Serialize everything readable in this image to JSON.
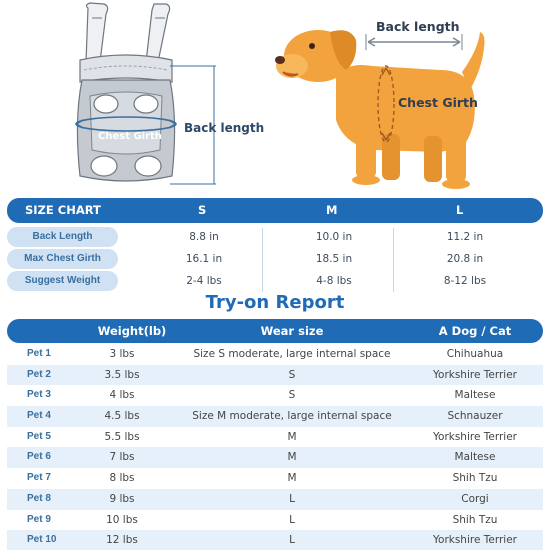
{
  "illustration": {
    "backpack_chest_girth": "Chest Girth",
    "backpack_back_length": "Back length",
    "dog_back_length": "Back length",
    "dog_chest_girth": "Chest Girth",
    "colors": {
      "dog": "#f2a33d",
      "bag": "#9aa1aa",
      "arrow": "#3a6f9f"
    }
  },
  "size_chart": {
    "header": {
      "title": "SIZE CHART",
      "sizes": [
        "S",
        "M",
        "L"
      ]
    },
    "rows": [
      {
        "label": "Back Length",
        "values": [
          "8.8 in",
          "10.0 in",
          "11.2 in"
        ]
      },
      {
        "label": "Max Chest Girth",
        "values": [
          "16.1 in",
          "18.5 in",
          "20.8 in"
        ]
      },
      {
        "label": "Suggest Weight",
        "values": [
          "2-4 lbs",
          "4-8 lbs",
          "8-12 lbs"
        ]
      }
    ]
  },
  "report": {
    "title": "Try-on Report",
    "header": {
      "weight": "Weight(lb)",
      "wear": "Wear size",
      "dog": "A Dog / Cat"
    },
    "rows": [
      {
        "pet": "Pet 1",
        "weight": "3 lbs",
        "wear": "Size S moderate, large internal space",
        "breed": "Chihuahua"
      },
      {
        "pet": "Pet 2",
        "weight": "3.5 lbs",
        "wear": "S",
        "breed": "Yorkshire Terrier"
      },
      {
        "pet": "Pet 3",
        "weight": "4 lbs",
        "wear": "S",
        "breed": "Maltese"
      },
      {
        "pet": "Pet 4",
        "weight": "4.5 lbs",
        "wear": "Size M moderate, large internal space",
        "breed": "Schnauzer"
      },
      {
        "pet": "Pet 5",
        "weight": "5.5 lbs",
        "wear": "M",
        "breed": "Yorkshire Terrier"
      },
      {
        "pet": "Pet 6",
        "weight": "7 lbs",
        "wear": "M",
        "breed": "Maltese"
      },
      {
        "pet": "Pet 7",
        "weight": "8 lbs",
        "wear": "M",
        "breed": "Shih Tzu"
      },
      {
        "pet": "Pet 8",
        "weight": "9 lbs",
        "wear": "L",
        "breed": "Corgi"
      },
      {
        "pet": "Pet 9",
        "weight": "10 lbs",
        "wear": "L",
        "breed": "Shih Tzu"
      },
      {
        "pet": "Pet 10",
        "weight": "12 lbs",
        "wear": "L",
        "breed": "Yorkshire Terrier"
      }
    ]
  }
}
